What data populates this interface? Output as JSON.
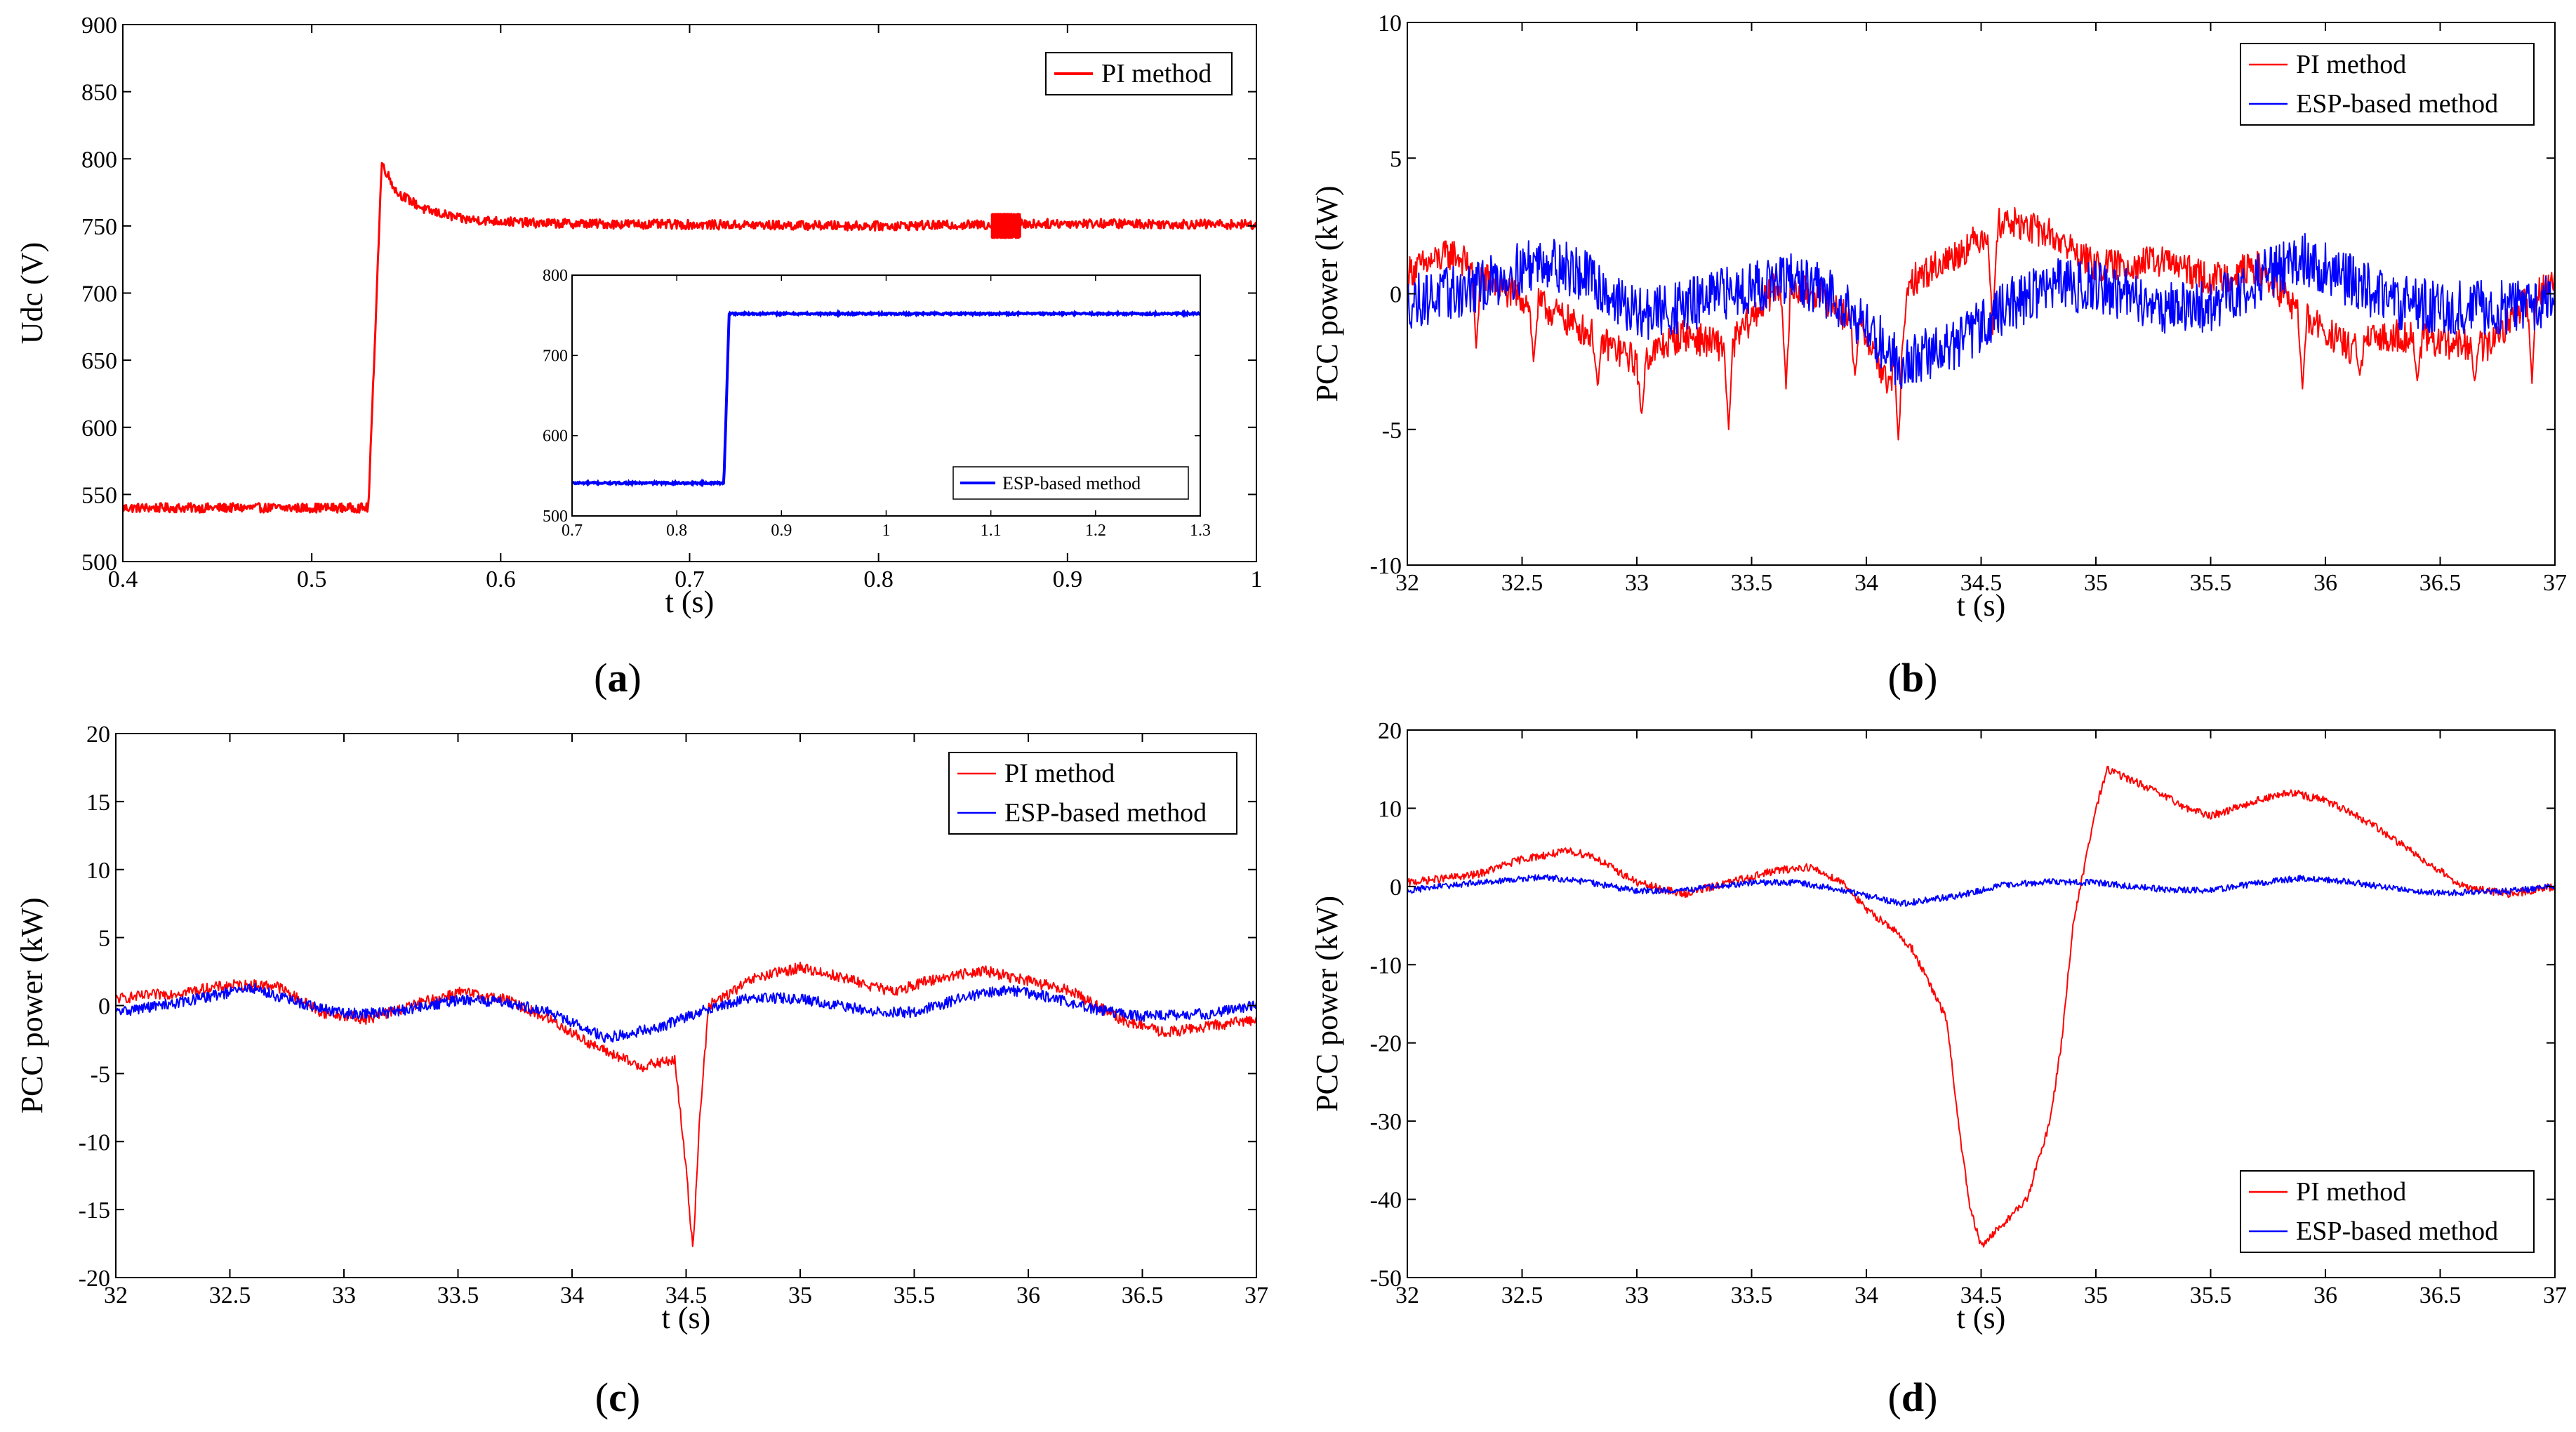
{
  "chart_data": [
    {
      "id": "a",
      "type": "line",
      "caption_open": "(",
      "caption_letter": "a",
      "caption_close": ")",
      "xlabel": "t (s)",
      "ylabel": "Udc (V)",
      "xlim": [
        0.4,
        1.0
      ],
      "ylim": [
        500,
        900
      ],
      "xticks": [
        0.4,
        0.5,
        0.6,
        0.7,
        0.8,
        0.9,
        1
      ],
      "yticks": [
        500,
        550,
        600,
        650,
        700,
        750,
        800,
        850,
        900
      ],
      "series": [
        {
          "name": "PI method",
          "color": "#ff0000",
          "width": 3,
          "profile": [
            [
              0.4,
              540
            ],
            [
              0.53,
              540
            ],
            [
              0.537,
              797
            ],
            [
              0.545,
              775
            ],
            [
              0.56,
              762
            ],
            [
              0.58,
              755
            ],
            [
              0.62,
              752
            ],
            [
              0.7,
              751
            ],
            [
              0.8,
              750
            ],
            [
              0.86,
              751
            ],
            [
              0.9,
              752
            ],
            [
              1.0,
              751
            ]
          ],
          "noise": 3.5
        },
        {
          "name": "",
          "color": "#ff0000",
          "width": 3,
          "profile": [
            [
              0.86,
              750
            ],
            [
              0.875,
              750
            ]
          ],
          "noise": 9
        }
      ],
      "legend": [
        "PI method"
      ],
      "inset": {
        "xlim": [
          0.7,
          1.3
        ],
        "ylim": [
          500,
          800
        ],
        "xticks": [
          0.7,
          0.8,
          0.9,
          1,
          1.1,
          1.2,
          1.3
        ],
        "yticks": [
          500,
          600,
          700,
          800
        ],
        "series": [
          {
            "name": "ESP-based method",
            "color": "#0000ff",
            "width": 4,
            "profile": [
              [
                0.7,
                541
              ],
              [
                0.845,
                541
              ],
              [
                0.85,
                752
              ],
              [
                1.3,
                752
              ]
            ],
            "noise": 1.2
          }
        ],
        "legend": [
          "ESP-based method"
        ]
      }
    },
    {
      "id": "b",
      "type": "line",
      "caption_open": "(",
      "caption_letter": "b",
      "caption_close": ")",
      "xlabel": "t (s)",
      "ylabel": "PCC power (kW)",
      "xlim": [
        32,
        37
      ],
      "ylim": [
        -10,
        10
      ],
      "xticks": [
        32,
        32.5,
        33,
        33.5,
        34,
        34.5,
        35,
        35.5,
        36,
        36.5,
        37
      ],
      "yticks": [
        -10,
        -5,
        0,
        5,
        10
      ],
      "series": [
        {
          "name": "PI method",
          "color": "#ff0000",
          "width": 2,
          "profile": [
            [
              32,
              0.8
            ],
            [
              32.2,
              1.5
            ],
            [
              32.4,
              0.2
            ],
            [
              32.6,
              -0.5
            ],
            [
              32.8,
              -1.5
            ],
            [
              33,
              -2.5
            ],
            [
              33.2,
              -1.5
            ],
            [
              33.4,
              -2
            ],
            [
              33.6,
              0.2
            ],
            [
              33.8,
              0
            ],
            [
              34,
              -1.5
            ],
            [
              34.1,
              -3.5
            ],
            [
              34.2,
              0.5
            ],
            [
              34.4,
              1.5
            ],
            [
              34.6,
              2.7
            ],
            [
              34.8,
              2.2
            ],
            [
              35,
              1
            ],
            [
              35.3,
              1.2
            ],
            [
              35.5,
              0.5
            ],
            [
              35.7,
              1
            ],
            [
              35.9,
              -0.8
            ],
            [
              36.1,
              -2
            ],
            [
              36.3,
              -1.5
            ],
            [
              36.5,
              -1.8
            ],
            [
              36.7,
              -2
            ],
            [
              36.9,
              0
            ],
            [
              37,
              0.5
            ]
          ],
          "noise": 0.6,
          "spikes": [
            [
              32.3,
              -2
            ],
            [
              32.55,
              -2.5
            ],
            [
              32.83,
              -3.5
            ],
            [
              33.02,
              -4.6
            ],
            [
              33.4,
              -5
            ],
            [
              33.65,
              -3.5
            ],
            [
              33.95,
              -3
            ],
            [
              34.14,
              -5.5
            ],
            [
              34.55,
              -1.5
            ],
            [
              35.9,
              -3.5
            ],
            [
              36.15,
              -3
            ],
            [
              36.4,
              -3.2
            ],
            [
              36.65,
              -3.2
            ],
            [
              36.9,
              -3.3
            ]
          ]
        },
        {
          "name": "ESP-based method",
          "color": "#0000ff",
          "width": 2,
          "profile": [
            [
              32,
              -0.3
            ],
            [
              32.3,
              0.2
            ],
            [
              32.6,
              1.3
            ],
            [
              32.8,
              0.5
            ],
            [
              33,
              -0.8
            ],
            [
              33.2,
              -0.5
            ],
            [
              33.5,
              0.3
            ],
            [
              33.7,
              0.5
            ],
            [
              33.9,
              -0.3
            ],
            [
              34.15,
              -2.6
            ],
            [
              34.4,
              -1.8
            ],
            [
              34.6,
              -0.5
            ],
            [
              34.8,
              0.3
            ],
            [
              35,
              0.3
            ],
            [
              35.3,
              -0.5
            ],
            [
              35.5,
              -0.5
            ],
            [
              35.7,
              0.5
            ],
            [
              35.9,
              1.3
            ],
            [
              36.1,
              0.5
            ],
            [
              36.3,
              -0.3
            ],
            [
              36.5,
              -0.5
            ],
            [
              36.8,
              -0.5
            ],
            [
              37,
              -0.2
            ]
          ],
          "noise": 1.0
        }
      ],
      "legend": [
        "PI method",
        "ESP-based method"
      ]
    },
    {
      "id": "c",
      "type": "line",
      "caption_open": "(",
      "caption_letter": "c",
      "caption_close": ")",
      "xlabel": "t (s)",
      "ylabel": "PCC power (kW)",
      "xlim": [
        32,
        37
      ],
      "ylim": [
        -20,
        20
      ],
      "xticks": [
        32,
        32.5,
        33,
        33.5,
        34,
        34.5,
        35,
        35.5,
        36,
        36.5,
        37
      ],
      "yticks": [
        -20,
        -15,
        -10,
        -5,
        0,
        5,
        10,
        15,
        20
      ],
      "series": [
        {
          "name": "PI method",
          "color": "#ff0000",
          "width": 2,
          "profile": [
            [
              32,
              0.5
            ],
            [
              32.3,
              1
            ],
            [
              32.5,
              1.5
            ],
            [
              32.7,
              1.5
            ],
            [
              32.9,
              -0.5
            ],
            [
              33.1,
              -1
            ],
            [
              33.3,
              0
            ],
            [
              33.5,
              1
            ],
            [
              33.7,
              0.5
            ],
            [
              33.9,
              -1
            ],
            [
              34.1,
              -3
            ],
            [
              34.3,
              -4.5
            ],
            [
              34.45,
              -4
            ],
            [
              34.5,
              -12
            ],
            [
              34.53,
              -18
            ],
            [
              34.56,
              -8
            ],
            [
              34.6,
              0
            ],
            [
              34.8,
              2
            ],
            [
              35,
              2.8
            ],
            [
              35.2,
              2
            ],
            [
              35.4,
              1
            ],
            [
              35.6,
              2
            ],
            [
              35.8,
              2.6
            ],
            [
              36,
              1.8
            ],
            [
              36.2,
              1
            ],
            [
              36.4,
              -1
            ],
            [
              36.6,
              -2
            ],
            [
              36.8,
              -1.5
            ],
            [
              37,
              -1
            ]
          ],
          "noise": 0.4
        },
        {
          "name": "ESP-based method",
          "color": "#0000ff",
          "width": 2,
          "profile": [
            [
              32,
              -0.5
            ],
            [
              32.3,
              0.3
            ],
            [
              32.6,
              1.3
            ],
            [
              32.8,
              0.2
            ],
            [
              33,
              -0.6
            ],
            [
              33.2,
              -0.5
            ],
            [
              33.5,
              0.4
            ],
            [
              33.7,
              0.3
            ],
            [
              33.9,
              -0.5
            ],
            [
              34.15,
              -2.4
            ],
            [
              34.4,
              -1.5
            ],
            [
              34.6,
              -0.2
            ],
            [
              34.8,
              0.6
            ],
            [
              35,
              0.5
            ],
            [
              35.3,
              -0.4
            ],
            [
              35.5,
              -0.5
            ],
            [
              35.7,
              0.5
            ],
            [
              35.9,
              1.2
            ],
            [
              36.1,
              0.6
            ],
            [
              36.3,
              -0.3
            ],
            [
              36.5,
              -0.8
            ],
            [
              36.8,
              -0.6
            ],
            [
              37,
              0
            ]
          ],
          "noise": 0.4
        }
      ],
      "legend": [
        "PI method",
        "ESP-based method"
      ]
    },
    {
      "id": "d",
      "type": "line",
      "caption_open": "(",
      "caption_letter": "d",
      "caption_close": ")",
      "xlabel": "t (s)",
      "ylabel": "PCC power (kW)",
      "xlim": [
        32,
        37
      ],
      "ylim": [
        -50,
        20
      ],
      "xticks": [
        32,
        32.5,
        33,
        33.5,
        34,
        34.5,
        35,
        35.5,
        36,
        36.5,
        37
      ],
      "yticks": [
        -50,
        -40,
        -30,
        -20,
        -10,
        0,
        10,
        20
      ],
      "series": [
        {
          "name": "PI method",
          "color": "#ff0000",
          "width": 2,
          "profile": [
            [
              32,
              0.5
            ],
            [
              32.3,
              1.5
            ],
            [
              32.5,
              3.5
            ],
            [
              32.7,
              4.5
            ],
            [
              32.8,
              4
            ],
            [
              33,
              0.5
            ],
            [
              33.2,
              -1
            ],
            [
              33.4,
              0.5
            ],
            [
              33.6,
              2
            ],
            [
              33.75,
              2.5
            ],
            [
              33.9,
              0.5
            ],
            [
              34.0,
              -3
            ],
            [
              34.1,
              -5
            ],
            [
              34.2,
              -8
            ],
            [
              34.3,
              -14
            ],
            [
              34.35,
              -17
            ],
            [
              34.4,
              -30
            ],
            [
              34.45,
              -41
            ],
            [
              34.5,
              -46
            ],
            [
              34.6,
              -43
            ],
            [
              34.7,
              -40
            ],
            [
              34.8,
              -30
            ],
            [
              34.85,
              -20
            ],
            [
              34.9,
              -5
            ],
            [
              35,
              10
            ],
            [
              35.05,
              15
            ],
            [
              35.2,
              13
            ],
            [
              35.4,
              10
            ],
            [
              35.5,
              9
            ],
            [
              35.6,
              10
            ],
            [
              35.7,
              11
            ],
            [
              35.85,
              12
            ],
            [
              36,
              11
            ],
            [
              36.2,
              8
            ],
            [
              36.4,
              4
            ],
            [
              36.6,
              0
            ],
            [
              36.8,
              -1
            ],
            [
              37,
              0
            ]
          ],
          "noise": 0.5
        },
        {
          "name": "ESP-based method",
          "color": "#0000ff",
          "width": 2,
          "profile": [
            [
              32,
              -0.5
            ],
            [
              32.3,
              0.5
            ],
            [
              32.6,
              1.2
            ],
            [
              32.8,
              0.5
            ],
            [
              33,
              -0.6
            ],
            [
              33.2,
              -0.5
            ],
            [
              33.5,
              0.5
            ],
            [
              33.7,
              0.5
            ],
            [
              33.9,
              -0.5
            ],
            [
              34.15,
              -2.2
            ],
            [
              34.4,
              -1.2
            ],
            [
              34.6,
              0.2
            ],
            [
              34.8,
              0.6
            ],
            [
              35,
              0.5
            ],
            [
              35.3,
              -0.4
            ],
            [
              35.5,
              -0.5
            ],
            [
              35.7,
              0.4
            ],
            [
              35.9,
              1.1
            ],
            [
              36.1,
              0.6
            ],
            [
              36.3,
              -0.3
            ],
            [
              36.5,
              -0.8
            ],
            [
              36.8,
              -0.6
            ],
            [
              37,
              0
            ]
          ],
          "noise": 0.4
        }
      ],
      "legend": [
        "PI method",
        "ESP-based method"
      ]
    }
  ]
}
